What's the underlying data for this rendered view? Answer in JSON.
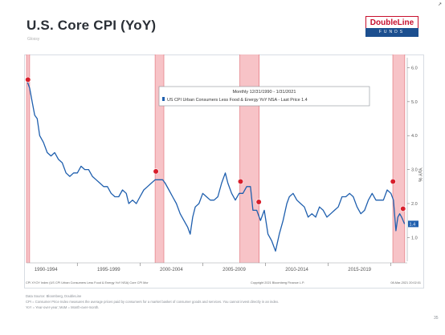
{
  "slide": {
    "title": "U.S. Core CPI (YoY)",
    "subtitle": "Glossy",
    "logo_top": "DoubleLine",
    "logo_bottom": "FUNDS",
    "page_number": "35",
    "data_source": "Data Source: Bloomberg, DoubleLine",
    "definition_1": "CPI = Consumer Price Index measures the average prices paid by consumers for a market basket of consumer goods and services. You cannot invest directly in an index.",
    "definition_2": "YoY = Year-over-year; MoM = Month-over-month.",
    "colors": {
      "line": "#1f5fae",
      "recession": "#f6b9bd",
      "recession_edge": "#e06a73",
      "marker": "#d81e2b",
      "last_price_box": "#1f5fae",
      "title": "#2a2f36"
    }
  },
  "chart_data": {
    "type": "line",
    "legend": {
      "date_range": "Monthly 12/31/1990 - 1/31/2021",
      "series_label": "US CPI Urban Consumers Less Food & Energy YoY NSA - Last Price 1.4",
      "placement": "top-center"
    },
    "ylabel": "YoY %",
    "ylim": [
      0.3,
      6.2
    ],
    "y_ticks": [
      "6.0",
      "5.0",
      "4.0",
      "3.0",
      "2.0",
      "1.0"
    ],
    "y_tick_values": [
      6.0,
      5.0,
      4.0,
      3.0,
      2.0,
      1.0
    ],
    "xlim": [
      1990.95,
      2021.3
    ],
    "x_tick_labels": [
      "1990-1994",
      "1995-1999",
      "2000-2004",
      "2005-2009",
      "2010-2014",
      "2015-2019"
    ],
    "x_tick_centers": [
      1992.5,
      1997.5,
      2002.5,
      2007.5,
      2012.5,
      2017.5
    ],
    "x_boundaries": [
      1990,
      1995,
      2000,
      2005,
      2010,
      2015,
      2020
    ],
    "last_price_label": "1.4",
    "grid": false,
    "footer_left": "CPI XYOY Index (US CPI Urban Consumers Less Food & Energy YoY NSA) Core CPI Mor",
    "footer_center": "Copyright 2021 Bloomberg Finance L.P.",
    "footer_right": "08-Mar-2021 20:02:01",
    "recessions": [
      {
        "start": 1990.6,
        "end": 1991.2
      },
      {
        "start": 2001.2,
        "end": 2001.9
      },
      {
        "start": 2007.95,
        "end": 2009.5
      },
      {
        "start": 2020.15,
        "end": 2021.1
      }
    ],
    "series": [
      {
        "values": [
          [
            1991.0,
            5.6
          ],
          [
            1991.2,
            5.4
          ],
          [
            1991.4,
            5.0
          ],
          [
            1991.6,
            4.6
          ],
          [
            1991.8,
            4.5
          ],
          [
            1992.0,
            4.0
          ],
          [
            1992.3,
            3.8
          ],
          [
            1992.6,
            3.5
          ],
          [
            1992.9,
            3.4
          ],
          [
            1993.2,
            3.5
          ],
          [
            1993.5,
            3.3
          ],
          [
            1993.8,
            3.2
          ],
          [
            1994.1,
            2.9
          ],
          [
            1994.4,
            2.8
          ],
          [
            1994.7,
            2.9
          ],
          [
            1995.0,
            2.9
          ],
          [
            1995.3,
            3.1
          ],
          [
            1995.6,
            3.0
          ],
          [
            1995.9,
            3.0
          ],
          [
            1996.2,
            2.8
          ],
          [
            1996.5,
            2.7
          ],
          [
            1996.8,
            2.6
          ],
          [
            1997.1,
            2.5
          ],
          [
            1997.4,
            2.5
          ],
          [
            1997.7,
            2.3
          ],
          [
            1998.0,
            2.2
          ],
          [
            1998.3,
            2.2
          ],
          [
            1998.6,
            2.4
          ],
          [
            1998.9,
            2.3
          ],
          [
            1999.1,
            2.0
          ],
          [
            1999.4,
            2.1
          ],
          [
            1999.7,
            2.0
          ],
          [
            2000.0,
            2.2
          ],
          [
            2000.3,
            2.4
          ],
          [
            2000.6,
            2.5
          ],
          [
            2000.9,
            2.6
          ],
          [
            2001.2,
            2.7
          ],
          [
            2001.5,
            2.7
          ],
          [
            2001.8,
            2.7
          ],
          [
            2002.0,
            2.6
          ],
          [
            2002.3,
            2.4
          ],
          [
            2002.6,
            2.2
          ],
          [
            2002.9,
            2.0
          ],
          [
            2003.2,
            1.7
          ],
          [
            2003.5,
            1.5
          ],
          [
            2003.8,
            1.3
          ],
          [
            2004.0,
            1.1
          ],
          [
            2004.2,
            1.6
          ],
          [
            2004.4,
            1.9
          ],
          [
            2004.7,
            2.0
          ],
          [
            2005.0,
            2.3
          ],
          [
            2005.3,
            2.2
          ],
          [
            2005.6,
            2.1
          ],
          [
            2005.9,
            2.1
          ],
          [
            2006.2,
            2.2
          ],
          [
            2006.5,
            2.6
          ],
          [
            2006.8,
            2.9
          ],
          [
            2007.0,
            2.6
          ],
          [
            2007.3,
            2.3
          ],
          [
            2007.6,
            2.1
          ],
          [
            2007.9,
            2.3
          ],
          [
            2008.2,
            2.3
          ],
          [
            2008.5,
            2.5
          ],
          [
            2008.8,
            2.5
          ],
          [
            2009.0,
            1.8
          ],
          [
            2009.3,
            1.8
          ],
          [
            2009.6,
            1.5
          ],
          [
            2009.9,
            1.8
          ],
          [
            2010.2,
            1.1
          ],
          [
            2010.5,
            0.9
          ],
          [
            2010.8,
            0.6
          ],
          [
            2011.1,
            1.1
          ],
          [
            2011.4,
            1.5
          ],
          [
            2011.7,
            2.0
          ],
          [
            2011.9,
            2.2
          ],
          [
            2012.2,
            2.3
          ],
          [
            2012.5,
            2.1
          ],
          [
            2012.8,
            2.0
          ],
          [
            2013.1,
            1.9
          ],
          [
            2013.4,
            1.6
          ],
          [
            2013.7,
            1.7
          ],
          [
            2014.0,
            1.6
          ],
          [
            2014.3,
            1.9
          ],
          [
            2014.6,
            1.8
          ],
          [
            2014.9,
            1.6
          ],
          [
            2015.2,
            1.7
          ],
          [
            2015.5,
            1.8
          ],
          [
            2015.8,
            1.9
          ],
          [
            2016.1,
            2.2
          ],
          [
            2016.4,
            2.2
          ],
          [
            2016.7,
            2.3
          ],
          [
            2017.0,
            2.2
          ],
          [
            2017.3,
            1.9
          ],
          [
            2017.6,
            1.7
          ],
          [
            2017.9,
            1.8
          ],
          [
            2018.2,
            2.1
          ],
          [
            2018.5,
            2.3
          ],
          [
            2018.8,
            2.1
          ],
          [
            2019.1,
            2.1
          ],
          [
            2019.4,
            2.1
          ],
          [
            2019.7,
            2.4
          ],
          [
            2020.0,
            2.3
          ],
          [
            2020.2,
            2.1
          ],
          [
            2020.4,
            1.2
          ],
          [
            2020.55,
            1.6
          ],
          [
            2020.7,
            1.7
          ],
          [
            2020.85,
            1.6
          ],
          [
            2021.08,
            1.4
          ]
        ]
      }
    ],
    "markers": [
      {
        "x": 1991.0,
        "y": 5.6
      },
      {
        "x": 2001.2,
        "y": 2.9
      },
      {
        "x": 2007.95,
        "y": 2.6
      },
      {
        "x": 2009.4,
        "y": 2.0
      },
      {
        "x": 2020.1,
        "y": 2.6
      },
      {
        "x": 2020.9,
        "y": 1.8
      }
    ]
  }
}
